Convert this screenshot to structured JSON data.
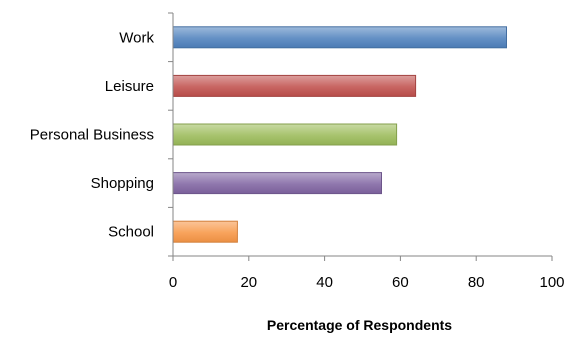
{
  "chart_data": {
    "type": "bar",
    "orientation": "horizontal",
    "categories": [
      "Work",
      "Leisure",
      "Personal Business",
      "Shopping",
      "School"
    ],
    "values": [
      88,
      64,
      59,
      55,
      17
    ],
    "colors": [
      "#4f81bd",
      "#c0504d",
      "#9bbb59",
      "#8064a2",
      "#f79646"
    ],
    "xlabel": "Percentage of Respondents",
    "ylabel": "",
    "title": "",
    "xlim": [
      0,
      100
    ],
    "xticks": [
      0,
      20,
      40,
      60,
      80,
      100
    ],
    "grid": false,
    "legend": "none"
  }
}
